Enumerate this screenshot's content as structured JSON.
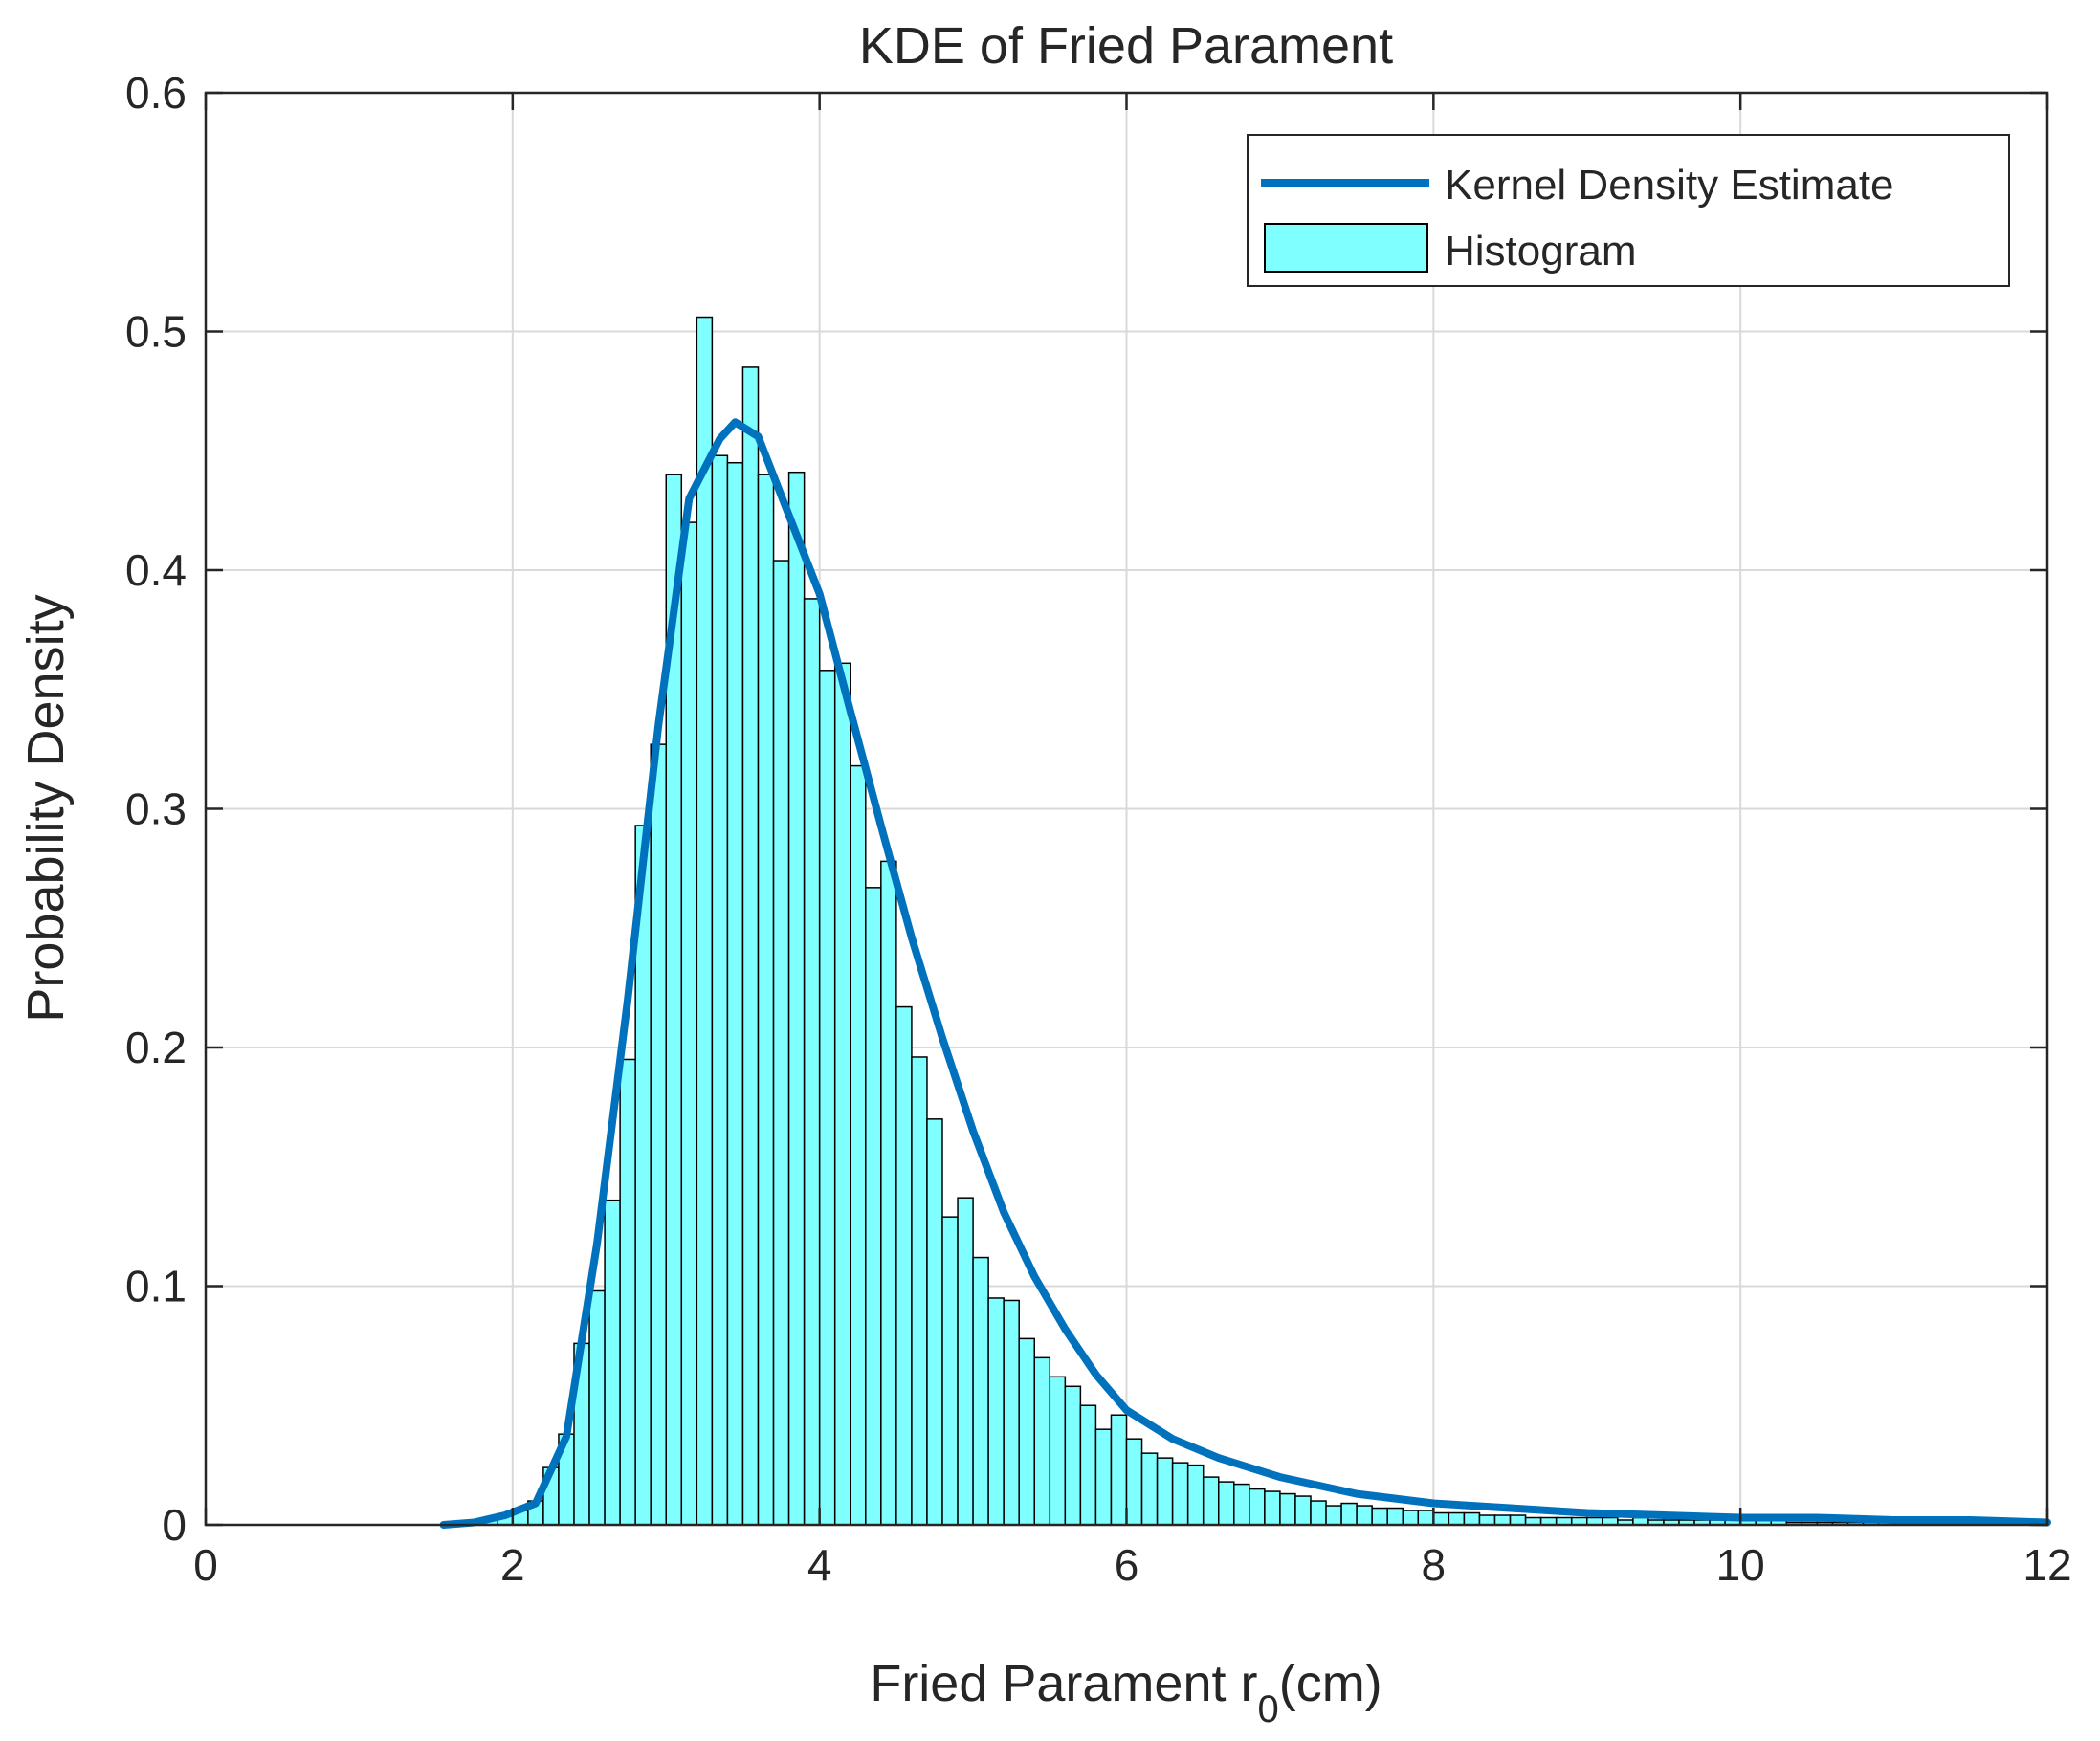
{
  "chart_data": {
    "type": "histogram+line",
    "title": "KDE of Fried Parament",
    "xlabel_main": "Fried Parament r",
    "xlabel_sub": "0",
    "xlabel_unit": "(cm)",
    "ylabel": "Probability Density",
    "xlim": [
      0,
      12
    ],
    "ylim": [
      0,
      0.6
    ],
    "xticks": [
      0,
      2,
      4,
      6,
      8,
      10,
      12
    ],
    "yticks": [
      0,
      0.1,
      0.2,
      0.3,
      0.4,
      0.5,
      0.6
    ],
    "xtick_labels": [
      "0",
      "2",
      "4",
      "6",
      "8",
      "10",
      "12"
    ],
    "ytick_labels": [
      "0",
      "0.1",
      "0.2",
      "0.3",
      "0.4",
      "0.5",
      "0.6"
    ],
    "grid": true,
    "legend_position": "top-right",
    "legend": [
      {
        "label": "Kernel Density Estimate",
        "kind": "line",
        "color": "#0072bd"
      },
      {
        "label": "Histogram",
        "kind": "patch",
        "color": "#7fffff"
      }
    ],
    "histogram": {
      "name": "Histogram",
      "color": "#7fffff",
      "bin_start": 1.6,
      "bin_width": 0.1,
      "values": [
        0.0,
        0.0,
        0.002,
        0.004,
        0.006,
        0.01,
        0.024,
        0.038,
        0.076,
        0.098,
        0.136,
        0.195,
        0.293,
        0.327,
        0.44,
        0.42,
        0.506,
        0.448,
        0.445,
        0.485,
        0.44,
        0.404,
        0.441,
        0.388,
        0.358,
        0.361,
        0.318,
        0.267,
        0.278,
        0.217,
        0.196,
        0.17,
        0.129,
        0.137,
        0.112,
        0.095,
        0.094,
        0.078,
        0.07,
        0.062,
        0.058,
        0.05,
        0.04,
        0.046,
        0.036,
        0.03,
        0.028,
        0.026,
        0.025,
        0.02,
        0.018,
        0.017,
        0.015,
        0.014,
        0.013,
        0.012,
        0.01,
        0.008,
        0.009,
        0.008,
        0.007,
        0.007,
        0.006,
        0.006,
        0.005,
        0.005,
        0.005,
        0.004,
        0.004,
        0.004,
        0.003,
        0.003,
        0.003,
        0.003,
        0.003,
        0.003,
        0.002,
        0.003,
        0.002,
        0.002,
        0.002,
        0.002,
        0.002,
        0.002,
        0.002,
        0.002,
        0.002,
        0.001,
        0.001,
        0.001,
        0.001,
        0.001,
        0.001,
        0.001,
        0.001,
        0.001,
        0.001,
        0.001,
        0.001,
        0.001,
        0.001,
        0.001,
        0.001,
        0.001
      ]
    },
    "kde": {
      "name": "Kernel Density Estimate",
      "color": "#0072bd",
      "x": [
        1.55,
        1.75,
        1.95,
        2.15,
        2.35,
        2.55,
        2.75,
        2.95,
        3.15,
        3.35,
        3.45,
        3.6,
        3.8,
        4.0,
        4.2,
        4.4,
        4.6,
        4.8,
        5.0,
        5.2,
        5.4,
        5.6,
        5.8,
        6.0,
        6.3,
        6.6,
        7.0,
        7.5,
        8.0,
        8.5,
        9.0,
        9.5,
        10.0,
        10.5,
        11.0,
        11.5,
        12.0
      ],
      "y": [
        0.0,
        0.001,
        0.004,
        0.009,
        0.037,
        0.118,
        0.22,
        0.335,
        0.43,
        0.455,
        0.462,
        0.456,
        0.423,
        0.39,
        0.341,
        0.293,
        0.246,
        0.204,
        0.165,
        0.131,
        0.104,
        0.082,
        0.063,
        0.048,
        0.036,
        0.028,
        0.02,
        0.013,
        0.009,
        0.007,
        0.005,
        0.004,
        0.003,
        0.003,
        0.002,
        0.002,
        0.001
      ]
    }
  }
}
